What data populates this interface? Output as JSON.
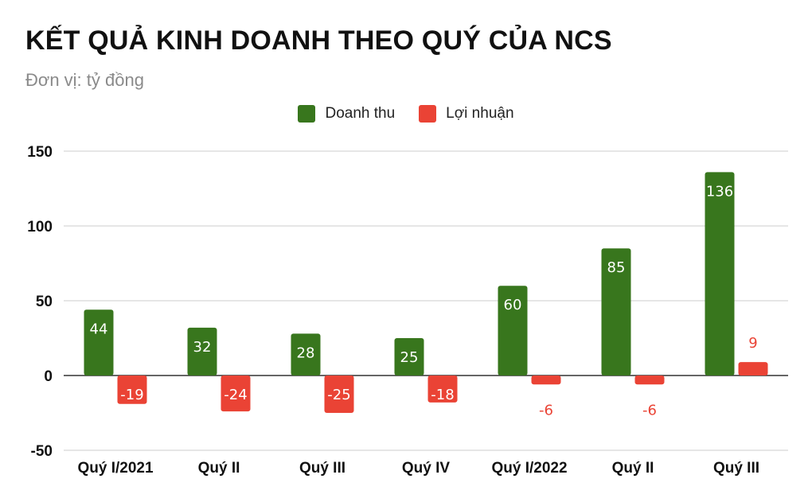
{
  "header": {
    "title": "KẾT QUẢ KINH DOANH THEO QUÝ CỦA NCS",
    "subtitle": "Đơn vị: tỷ đồng"
  },
  "legend": [
    {
      "label": "Doanh thu",
      "color": "#38761d"
    },
    {
      "label": "Lợi nhuận",
      "color": "#ea4335"
    }
  ],
  "chart_data": {
    "type": "bar",
    "title": "KẾT QUẢ KINH DOANH THEO QUÝ CỦA NCS",
    "subtitle": "Đơn vị: tỷ đồng",
    "categories": [
      "Quý I/2021",
      "Quý II",
      "Quý III",
      "Quý IV",
      "Quý I/2022",
      "Quý II",
      "Quý III"
    ],
    "series": [
      {
        "name": "Doanh thu",
        "color": "#38761d",
        "values": [
          44,
          32,
          28,
          25,
          60,
          85,
          136
        ]
      },
      {
        "name": "Lợi nhuận",
        "color": "#ea4335",
        "values": [
          -19,
          -24,
          -25,
          -18,
          -6,
          -6,
          9
        ]
      }
    ],
    "ylim": [
      -50,
      150
    ],
    "yticks": [
      -50,
      0,
      50,
      100,
      150
    ],
    "grid": true,
    "legend_position": "top-center"
  }
}
